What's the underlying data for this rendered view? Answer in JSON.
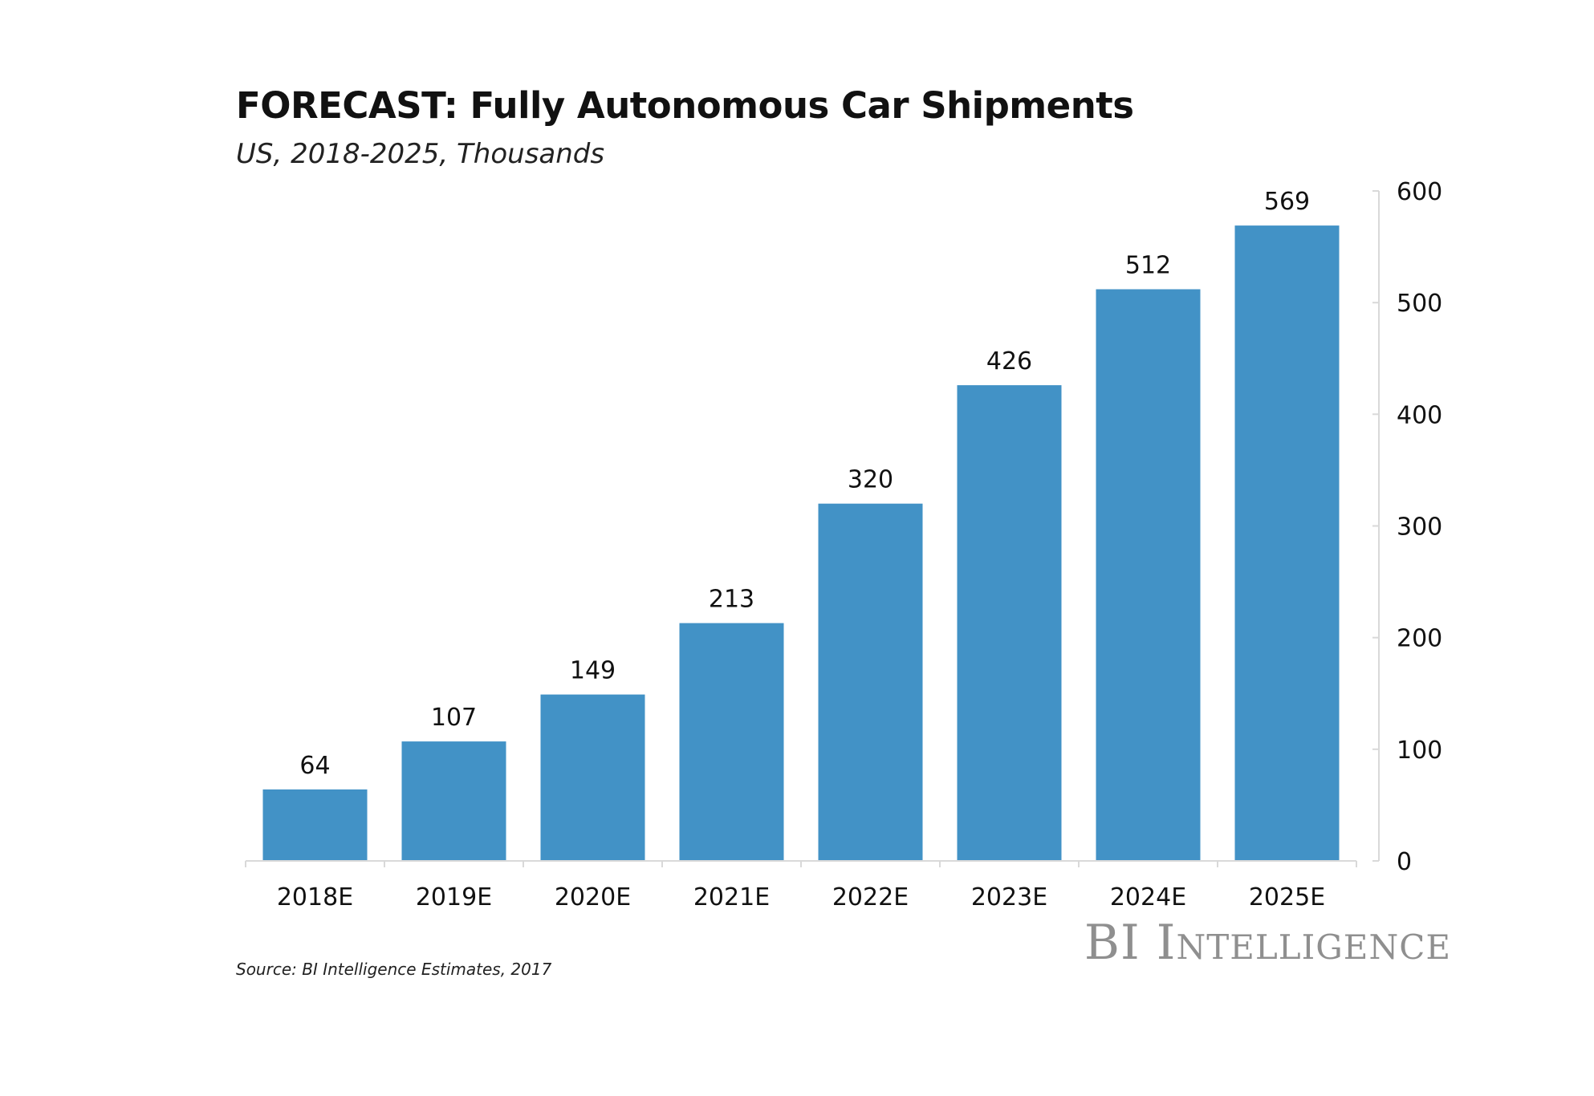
{
  "chart_data": {
    "type": "bar",
    "title": "FORECAST: Fully Autonomous Car Shipments",
    "subtitle": "US, 2018-2025, Thousands",
    "categories": [
      "2018E",
      "2019E",
      "2020E",
      "2021E",
      "2022E",
      "2023E",
      "2024E",
      "2025E"
    ],
    "values": [
      64,
      107,
      149,
      213,
      320,
      426,
      512,
      569
    ],
    "data_labels": [
      "64",
      "107",
      "149",
      "213",
      "320",
      "426",
      "512",
      "569"
    ],
    "y_ticks": [
      0,
      100,
      200,
      300,
      400,
      500,
      600
    ],
    "y_tick_labels": [
      "0",
      "100",
      "200",
      "300",
      "400",
      "500",
      "600"
    ],
    "ylim": [
      0,
      600
    ],
    "y_axis_position": "right",
    "xlabel": "",
    "ylabel": "",
    "grid": false,
    "bar_color": "#4292c6",
    "axis_color": "#d9d9d9"
  },
  "source": "Source: BI Intelligence Estimates, 2017",
  "brand": "BI Intelligence"
}
